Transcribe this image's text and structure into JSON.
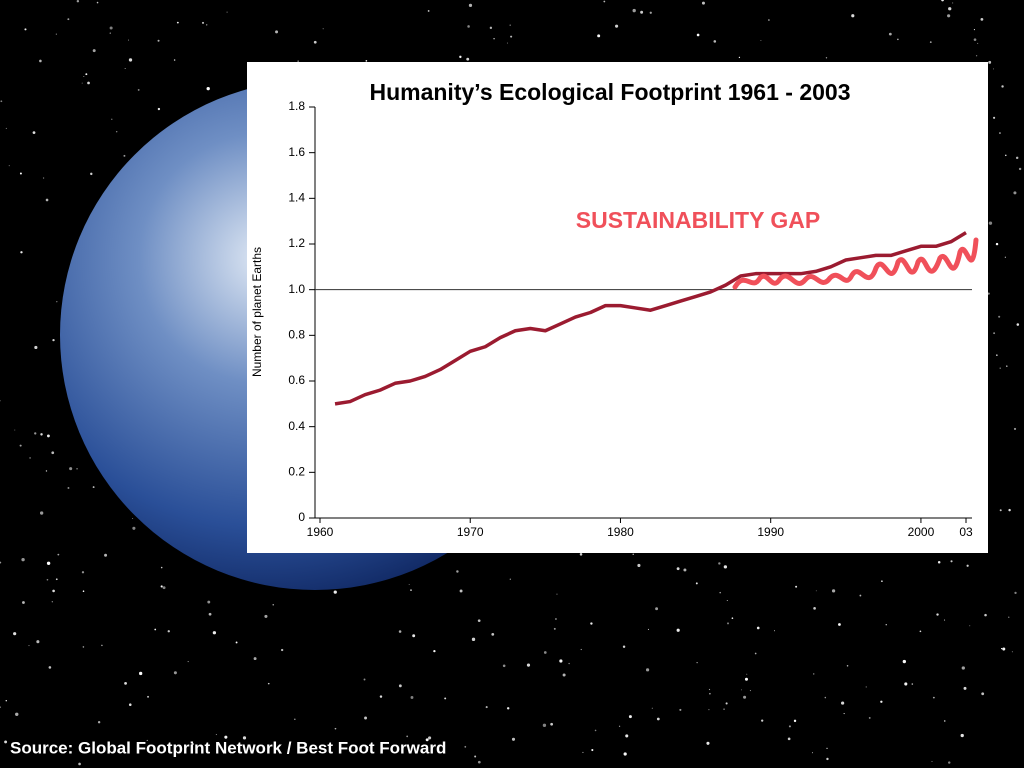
{
  "chart_data": {
    "type": "line",
    "title": "Humanity’s Ecological Footprint 1961 - 2003",
    "ylabel": "Number of planet Earths",
    "annotation": "SUSTAINABILITY GAP",
    "source": "Source: Global Footprint Network / Best Foot Forward",
    "x": [
      1961,
      1962,
      1963,
      1964,
      1965,
      1966,
      1967,
      1968,
      1969,
      1970,
      1971,
      1972,
      1973,
      1974,
      1975,
      1976,
      1977,
      1978,
      1979,
      1980,
      1981,
      1982,
      1983,
      1984,
      1985,
      1986,
      1987,
      1988,
      1989,
      1990,
      1991,
      1992,
      1993,
      1994,
      1995,
      1996,
      1997,
      1998,
      1999,
      2000,
      2001,
      2002,
      2003
    ],
    "series": [
      {
        "color": "#9b1b30",
        "values": [
          0.5,
          0.51,
          0.54,
          0.56,
          0.59,
          0.6,
          0.62,
          0.65,
          0.69,
          0.73,
          0.75,
          0.79,
          0.82,
          0.83,
          0.82,
          0.85,
          0.88,
          0.9,
          0.93,
          0.93,
          0.92,
          0.91,
          0.93,
          0.95,
          0.97,
          0.99,
          1.02,
          1.06,
          1.07,
          1.07,
          1.07,
          1.07,
          1.08,
          1.1,
          1.13,
          1.14,
          1.15,
          1.15,
          1.17,
          1.19,
          1.19,
          1.21,
          1.25
        ]
      }
    ],
    "xlim": [
      1960,
      2003
    ],
    "xticks": [
      1960,
      1970,
      1980,
      1990,
      2000,
      {
        "value": 2003,
        "label": "03"
      }
    ],
    "ylim": [
      0,
      1.8
    ],
    "yticks": [
      0,
      0.2,
      0.4,
      0.6,
      0.8,
      {
        "value": 1,
        "label": "1.0"
      },
      1.2,
      1.4,
      1.6,
      1.8
    ],
    "reference_line": 1
  }
}
